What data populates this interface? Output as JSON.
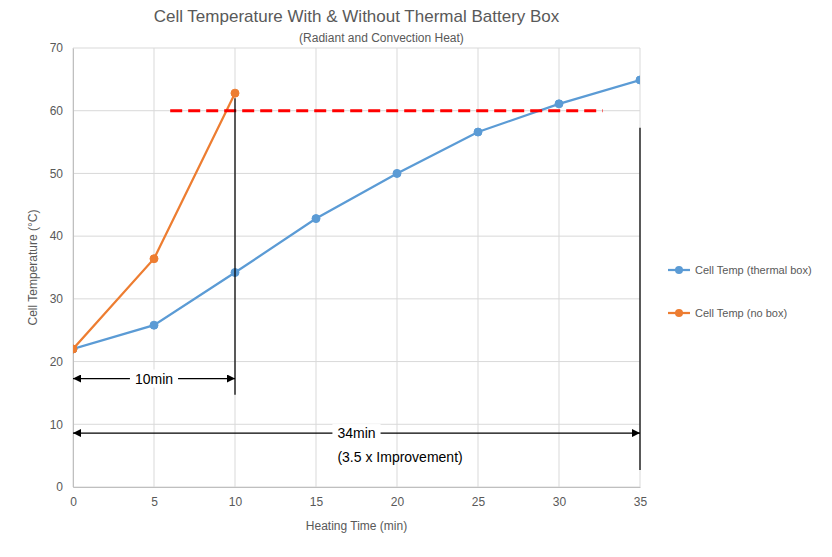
{
  "chart_data": {
    "type": "line",
    "title": "Cell Temperature With & Without Thermal Battery Box",
    "subtitle": "(Radiant and Convection Heat)",
    "x_label": "Heating Time (min)",
    "y_label": "Cell Temperature (°C)",
    "xlim": [
      0,
      35
    ],
    "xticks": [
      0,
      5,
      10,
      15,
      20,
      25,
      30,
      35
    ],
    "ylim": [
      0,
      70
    ],
    "yticks": [
      0,
      10,
      20,
      30,
      40,
      50,
      60,
      70
    ],
    "grid": true,
    "legend": "right",
    "marker": "circle",
    "series": [
      {
        "name": "Cell Temp (thermal box)",
        "color": "#5b9bd5",
        "x": [
          0,
          5,
          10,
          15,
          20,
          25,
          30,
          35
        ],
        "values": [
          22,
          25.8,
          34.2,
          42.8,
          50,
          56.6,
          61.1,
          64.9
        ]
      },
      {
        "name": "Cell Temp (no box)",
        "color": "#ed7d31",
        "x": [
          0,
          5,
          10
        ],
        "values": [
          22,
          36.4,
          62.8
        ]
      }
    ],
    "annotations": [
      {
        "type": "hline",
        "y": 60,
        "x": [
          6,
          32.7
        ],
        "color": "#ff0000",
        "line_style": "dashed"
      },
      {
        "type": "vline",
        "x": 10,
        "y": [
          14.7,
          62
        ]
      },
      {
        "type": "vline",
        "x": 35,
        "y": [
          2.7,
          57.3
        ]
      },
      {
        "type": "span",
        "text": "10min",
        "x": [
          0,
          10
        ],
        "y": 17.3
      },
      {
        "type": "span",
        "text": "34min",
        "note": "(3.5 x Improvement)",
        "x": [
          0,
          35
        ],
        "y": 8.6
      }
    ]
  }
}
